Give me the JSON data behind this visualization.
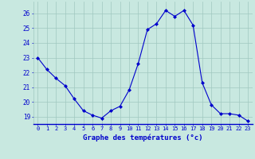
{
  "hours": [
    0,
    1,
    2,
    3,
    4,
    5,
    6,
    7,
    8,
    9,
    10,
    11,
    12,
    13,
    14,
    15,
    16,
    17,
    18,
    19,
    20,
    21,
    22,
    23
  ],
  "temps": [
    23.0,
    22.2,
    21.6,
    21.1,
    20.2,
    19.4,
    19.1,
    18.9,
    19.4,
    19.7,
    20.8,
    22.6,
    24.9,
    25.3,
    26.2,
    25.8,
    26.2,
    25.2,
    21.3,
    19.8,
    19.2,
    19.2,
    19.1,
    18.7
  ],
  "line_color": "#0000cc",
  "marker_color": "#0000cc",
  "bg_color": "#c8e8e0",
  "grid_color": "#a0c8c0",
  "xlabel": "Graphe des températures (°c)",
  "xlabel_color": "#0000cc",
  "tick_color": "#0000cc",
  "ylim": [
    18.5,
    26.8
  ],
  "yticks": [
    19,
    20,
    21,
    22,
    23,
    24,
    25,
    26
  ],
  "xlim": [
    -0.5,
    23.5
  ],
  "xticks": [
    0,
    1,
    2,
    3,
    4,
    5,
    6,
    7,
    8,
    9,
    10,
    11,
    12,
    13,
    14,
    15,
    16,
    17,
    18,
    19,
    20,
    21,
    22,
    23
  ],
  "xtick_labels": [
    "0",
    "1",
    "2",
    "3",
    "4",
    "5",
    "6",
    "7",
    "8",
    "9",
    "10",
    "11",
    "12",
    "13",
    "14",
    "15",
    "16",
    "17",
    "18",
    "19",
    "20",
    "21",
    "22",
    "23"
  ]
}
